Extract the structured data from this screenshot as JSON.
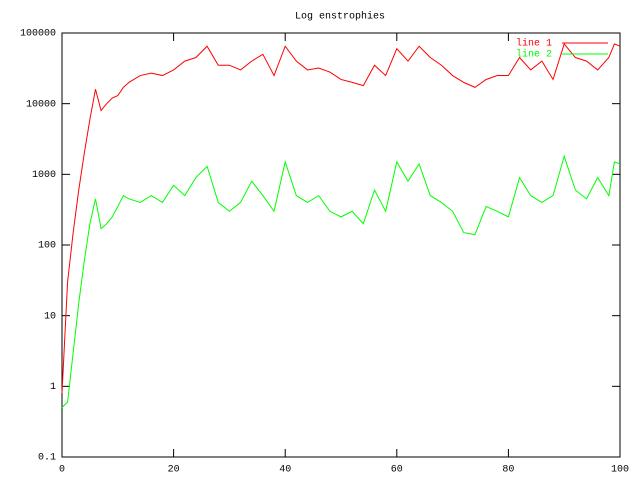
{
  "chart_data": {
    "type": "line",
    "title": "Log enstrophies",
    "x": [
      0,
      1,
      2,
      3,
      4,
      5,
      6,
      7,
      8,
      9,
      10,
      11,
      12,
      14,
      16,
      18,
      20,
      22,
      24,
      26,
      28,
      30,
      32,
      34,
      36,
      38,
      40,
      42,
      44,
      46,
      48,
      50,
      52,
      54,
      56,
      58,
      60,
      62,
      64,
      66,
      68,
      70,
      72,
      74,
      76,
      78,
      80,
      82,
      84,
      86,
      88,
      90,
      92,
      94,
      96,
      98,
      99,
      100
    ],
    "series": [
      {
        "name": "line 1",
        "color": "#ff0000",
        "values": [
          0.8,
          30,
          150,
          600,
          2000,
          6000,
          16000,
          8000,
          10000,
          12000,
          13000,
          17000,
          20000,
          25000,
          27000,
          25000,
          30000,
          40000,
          45000,
          65000,
          35000,
          35000,
          30000,
          40000,
          50000,
          25000,
          65000,
          40000,
          30000,
          32000,
          28000,
          22000,
          20000,
          18000,
          35000,
          25000,
          60000,
          40000,
          65000,
          45000,
          35000,
          25000,
          20000,
          17000,
          22000,
          25000,
          25000,
          45000,
          30000,
          40000,
          22000,
          70000,
          45000,
          40000,
          30000,
          45000,
          70000,
          65000
        ]
      },
      {
        "name": "line 2",
        "color": "#00ff00",
        "values": [
          0.5,
          0.6,
          3,
          15,
          60,
          200,
          450,
          170,
          200,
          250,
          350,
          500,
          450,
          400,
          500,
          400,
          700,
          500,
          900,
          1300,
          400,
          300,
          400,
          800,
          500,
          300,
          1500,
          500,
          400,
          500,
          300,
          250,
          300,
          200,
          600,
          300,
          1500,
          800,
          1400,
          500,
          400,
          300,
          150,
          140,
          350,
          300,
          250,
          900,
          500,
          400,
          500,
          1800,
          600,
          450,
          900,
          500,
          1500,
          1400
        ]
      }
    ],
    "xlim": [
      0,
      100
    ],
    "xticks": [
      0,
      20,
      40,
      60,
      80,
      100
    ],
    "ylim": [
      0.1,
      100000
    ],
    "yticks": [
      0.1,
      1,
      10,
      100,
      1000,
      10000,
      100000
    ],
    "log_y": true,
    "grid": false,
    "legend": "top-right"
  }
}
